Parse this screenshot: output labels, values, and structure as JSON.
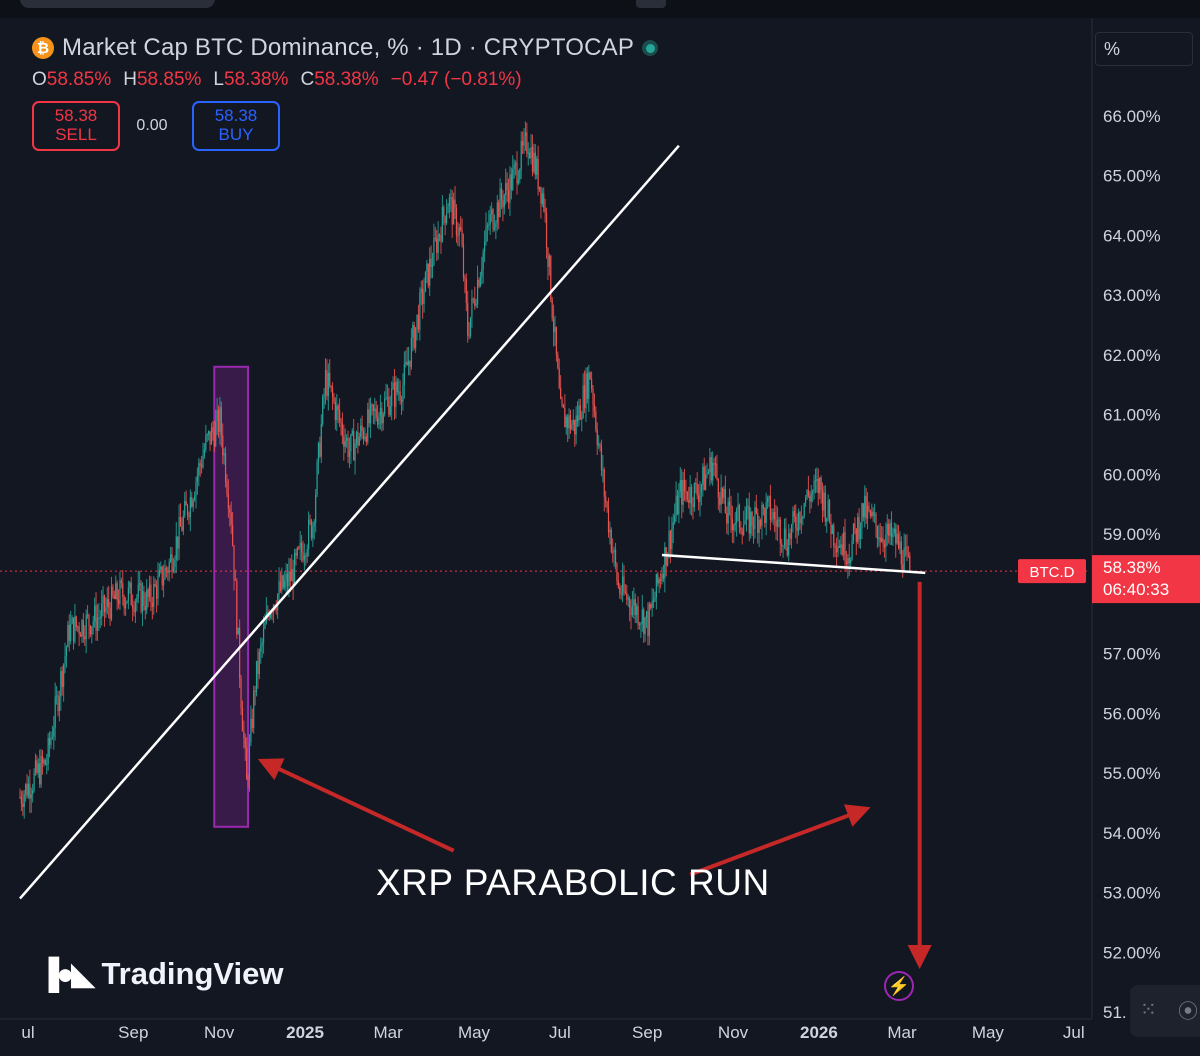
{
  "header": {
    "logo_icon": "bitcoin-icon",
    "title": "Market Cap BTC Dominance, % · 1D · CRYPTOCAP",
    "status_icon": "live-status-dot-icon"
  },
  "ohlc": {
    "o_label": "O",
    "o_value": "58.85%",
    "h_label": "H",
    "h_value": "58.85%",
    "l_label": "L",
    "l_value": "58.38%",
    "c_label": "C",
    "c_value": "58.38%",
    "change": "−0.47 (−0.81%)"
  },
  "trade": {
    "sell_price": "58.38",
    "sell_label": "SELL",
    "spread": "0.00",
    "buy_price": "58.38",
    "buy_label": "BUY"
  },
  "scale": {
    "unit": "%"
  },
  "price_tag": {
    "symbol": "BTC.D",
    "value": "58.38%",
    "countdown": "06:40:33"
  },
  "annotation": {
    "text": "XRP PARABOLIC RUN"
  },
  "branding": {
    "name": "TradingView",
    "logo_icon": "tradingview-logo-icon"
  },
  "colors": {
    "up": "#26a69a",
    "down": "#ef5350",
    "trendline": "#ffffff",
    "highlight_box": "#9c27b0",
    "arrow": "#c62828",
    "price_line": "#f23645"
  },
  "chart_data": {
    "type": "candlestick",
    "title": "Market Cap BTC Dominance, % · 1D · CRYPTOCAP",
    "y_axis_ticks": [
      "66.00%",
      "65.00%",
      "64.00%",
      "63.00%",
      "62.00%",
      "61.00%",
      "60.00%",
      "59.00%",
      "57.00%",
      "56.00%",
      "55.00%",
      "54.00%",
      "53.00%",
      "52.00%",
      "51."
    ],
    "x_axis_ticks": [
      "ul",
      "Sep",
      "Nov",
      "2025",
      "Mar",
      "May",
      "Jul",
      "Sep",
      "Nov",
      "2026",
      "Mar",
      "May",
      "Jul"
    ],
    "ylim": [
      50.9,
      66.6
    ],
    "xlim": [
      "2024-07-01",
      "2026-07-31"
    ],
    "grid": false,
    "last_value": 58.38,
    "close_series": [
      {
        "x": "2024-07-01",
        "y": 54.6
      },
      {
        "x": "2024-07-20",
        "y": 55.2
      },
      {
        "x": "2024-08-05",
        "y": 57.4
      },
      {
        "x": "2024-08-25",
        "y": 57.6
      },
      {
        "x": "2024-09-10",
        "y": 58.0
      },
      {
        "x": "2024-10-01",
        "y": 57.9
      },
      {
        "x": "2024-10-15",
        "y": 58.5
      },
      {
        "x": "2024-10-30",
        "y": 59.6
      },
      {
        "x": "2024-11-10",
        "y": 60.5
      },
      {
        "x": "2024-11-20",
        "y": 60.9
      },
      {
        "x": "2024-11-28",
        "y": 59.3
      },
      {
        "x": "2024-12-05",
        "y": 56.3
      },
      {
        "x": "2024-12-09",
        "y": 54.8
      },
      {
        "x": "2024-12-15",
        "y": 56.5
      },
      {
        "x": "2024-12-25",
        "y": 57.8
      },
      {
        "x": "2025-01-10",
        "y": 58.3
      },
      {
        "x": "2025-01-25",
        "y": 59.2
      },
      {
        "x": "2025-02-03",
        "y": 61.6
      },
      {
        "x": "2025-02-20",
        "y": 60.4
      },
      {
        "x": "2025-03-10",
        "y": 61.0
      },
      {
        "x": "2025-03-30",
        "y": 61.5
      },
      {
        "x": "2025-04-15",
        "y": 63.2
      },
      {
        "x": "2025-05-01",
        "y": 64.6
      },
      {
        "x": "2025-05-10",
        "y": 64.0
      },
      {
        "x": "2025-05-15",
        "y": 62.4
      },
      {
        "x": "2025-05-30",
        "y": 64.2
      },
      {
        "x": "2025-06-15",
        "y": 64.9
      },
      {
        "x": "2025-06-27",
        "y": 65.6
      },
      {
        "x": "2025-07-08",
        "y": 64.6
      },
      {
        "x": "2025-07-20",
        "y": 61.0
      },
      {
        "x": "2025-07-30",
        "y": 60.8
      },
      {
        "x": "2025-08-10",
        "y": 61.7
      },
      {
        "x": "2025-08-20",
        "y": 59.7
      },
      {
        "x": "2025-08-30",
        "y": 58.1
      },
      {
        "x": "2025-09-10",
        "y": 57.8
      },
      {
        "x": "2025-09-20",
        "y": 57.5
      },
      {
        "x": "2025-10-05",
        "y": 58.9
      },
      {
        "x": "2025-10-13",
        "y": 59.7
      },
      {
        "x": "2025-10-25",
        "y": 59.7
      },
      {
        "x": "2025-11-05",
        "y": 60.2
      },
      {
        "x": "2025-11-15",
        "y": 59.3
      },
      {
        "x": "2025-11-30",
        "y": 59.2
      },
      {
        "x": "2025-12-15",
        "y": 59.4
      },
      {
        "x": "2025-12-28",
        "y": 58.9
      },
      {
        "x": "2026-01-10",
        "y": 59.6
      },
      {
        "x": "2026-01-20",
        "y": 59.8
      },
      {
        "x": "2026-01-30",
        "y": 59.0
      },
      {
        "x": "2026-02-10",
        "y": 58.7
      },
      {
        "x": "2026-02-20",
        "y": 59.4
      },
      {
        "x": "2026-03-05",
        "y": 59.0
      },
      {
        "x": "2026-03-15",
        "y": 58.9
      },
      {
        "x": "2026-03-25",
        "y": 58.38
      }
    ],
    "drawings": {
      "trendline": {
        "from": {
          "x": "2024-07-01",
          "y": 52.9
        },
        "to": {
          "x": "2025-10-12",
          "y": 65.5
        }
      },
      "support_line": {
        "from": {
          "x": "2025-09-30",
          "y": 58.65
        },
        "to": {
          "x": "2026-04-05",
          "y": 58.35
        }
      },
      "highlight_box": {
        "x0": "2024-11-16",
        "x1": "2024-12-10",
        "y0": 54.1,
        "y1": 61.8
      },
      "down_arrow": {
        "from": {
          "x": "2026-04-01",
          "y": 58.2
        },
        "to": {
          "x": "2026-04-01",
          "y": 51.8
        }
      },
      "arrows_to_label": [
        {
          "from": {
            "x": "2025-05-05",
            "y": 53.7
          },
          "to": {
            "x": "2024-12-20",
            "y": 55.2
          }
        },
        {
          "from": {
            "x": "2025-10-20",
            "y": 53.3
          },
          "to": {
            "x": "2026-02-22",
            "y": 54.4
          }
        }
      ]
    }
  }
}
